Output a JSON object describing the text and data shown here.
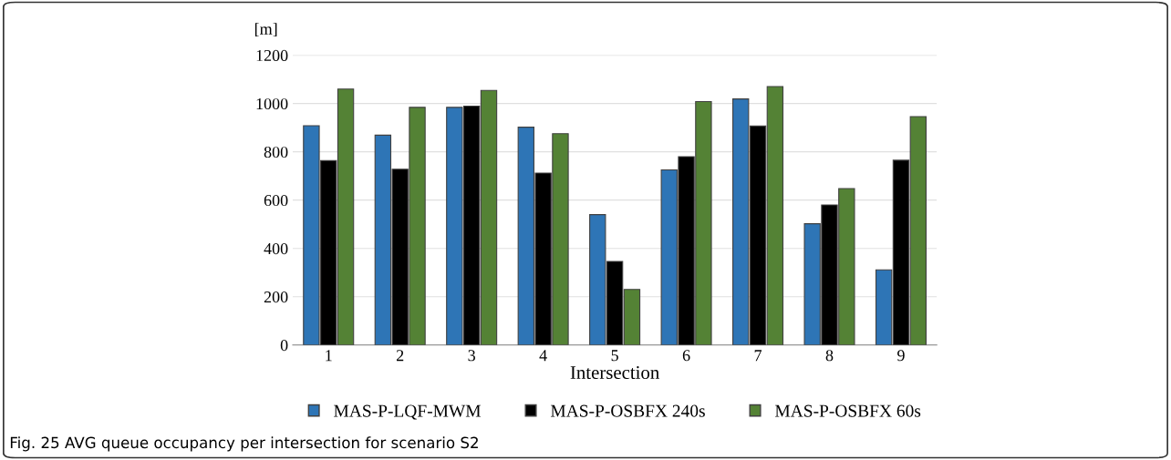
{
  "chart_data": {
    "type": "bar",
    "ylabel": "[m]",
    "xlabel": "Intersection",
    "categories": [
      "1",
      "2",
      "3",
      "4",
      "5",
      "6",
      "7",
      "8",
      "9"
    ],
    "series": [
      {
        "name": "MAS-P-LQF-MWM",
        "color": "#2e75b6",
        "values": [
          908,
          869,
          984,
          902,
          540,
          725,
          1019,
          502,
          311
        ]
      },
      {
        "name": "MAS-P-OSBFX 240s",
        "color": "#000000",
        "values": [
          764,
          728,
          989,
          712,
          346,
          780,
          907,
          580,
          765
        ]
      },
      {
        "name": "MAS-P-OSBFX 60s",
        "color": "#548235",
        "values": [
          1060,
          984,
          1054,
          875,
          230,
          1008,
          1070,
          648,
          946
        ]
      }
    ],
    "ylim": [
      0,
      1200
    ],
    "yticks": [
      0,
      200,
      400,
      600,
      800,
      1000,
      1200
    ],
    "grid": "y",
    "legend": "bottom",
    "annotations": [
      "Fig. 25 AVG queue occupancy per intersection for scenario S2"
    ]
  }
}
